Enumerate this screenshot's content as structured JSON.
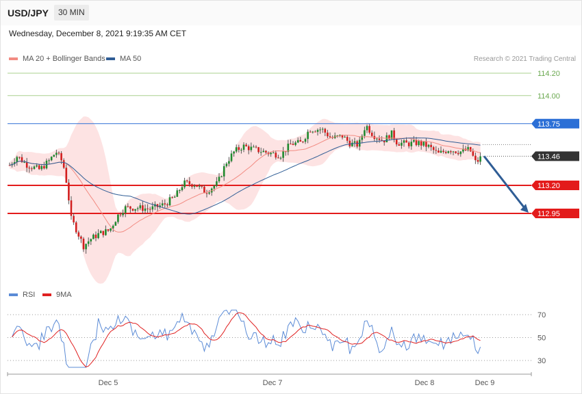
{
  "header": {
    "symbol": "USD/JPY",
    "timeframe": "30 MIN",
    "datetime": "Wednesday, December 8, 2021 9:19:35 AM CET"
  },
  "legend": {
    "ma20_label": "MA 20 + Bollinger Bands",
    "ma20_color": "#f28b82",
    "ma50_label": "MA 50",
    "ma50_color": "#2f5d95",
    "rsi_label": "RSI",
    "rsi_color": "#5b8bd6",
    "ma9_label": "9MA",
    "ma9_color": "#e02020"
  },
  "credit": "Research © 2021 Trading Central",
  "chart_data": [
    {
      "type": "candlestick",
      "title": "USD/JPY 30 MIN",
      "ylim": [
        112.66,
        114.32
      ],
      "x_ticks": [
        "Dec 5",
        "Dec 7",
        "Dec 8",
        "Dec 9"
      ],
      "price_levels": [
        {
          "label": "114.20",
          "value": 114.2,
          "style": "target",
          "color": "#6aa84f"
        },
        {
          "label": "114.00",
          "value": 114.0,
          "style": "target",
          "color": "#6aa84f"
        },
        {
          "label": "113.75",
          "value": 113.75,
          "style": "resistance",
          "color": "#2b6fd6"
        },
        {
          "label": "113.46",
          "value": 113.46,
          "style": "last_price",
          "color": "#333333"
        },
        {
          "label": "113.20",
          "value": 113.2,
          "style": "support",
          "color": "#e31b1b"
        },
        {
          "label": "112.95",
          "value": 112.95,
          "style": "support",
          "color": "#e31b1b"
        }
      ],
      "forecast_arrow": {
        "from": 113.46,
        "to": 112.95,
        "color": "#2f5d95"
      },
      "indicators": [
        "MA 20 + Bollinger Bands",
        "MA 50"
      ]
    },
    {
      "type": "line",
      "title": "RSI",
      "ylim": [
        20,
        76
      ],
      "y_ticks": [
        70,
        50,
        30
      ],
      "series": [
        {
          "name": "RSI",
          "color": "#5b8bd6"
        },
        {
          "name": "9MA",
          "color": "#e02020"
        }
      ]
    }
  ]
}
